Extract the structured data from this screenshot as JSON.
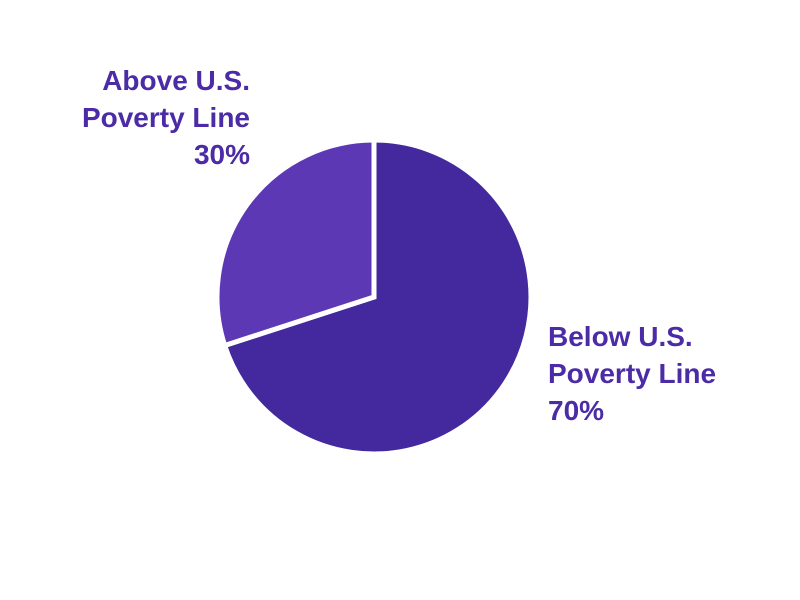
{
  "chart_data": {
    "type": "pie",
    "title": "",
    "direction": "clockwise",
    "start_angle": "12-oclock",
    "legend": "none",
    "separator_color": "#FFFFFF",
    "separator_width": 5,
    "slices": [
      {
        "id": "below-us-poverty-line",
        "name": "Below U.S. Poverty Line",
        "value": 70,
        "pct_label": "70%",
        "color": "#44289E",
        "label_lines": [
          "Below U.S.",
          "Poverty Line",
          "70%"
        ],
        "label_position": "right-of-pie"
      },
      {
        "id": "above-us-poverty-line",
        "name": "Above U.S. Poverty Line",
        "value": 30,
        "pct_label": "30%",
        "color": "#5D38B5",
        "label_lines": [
          "Above U.S.",
          "Poverty Line",
          "30%"
        ],
        "label_position": "upper-left-of-pie"
      }
    ]
  },
  "colors": {
    "label_text": "#4B2BA6",
    "background": "#FFFFFF"
  }
}
